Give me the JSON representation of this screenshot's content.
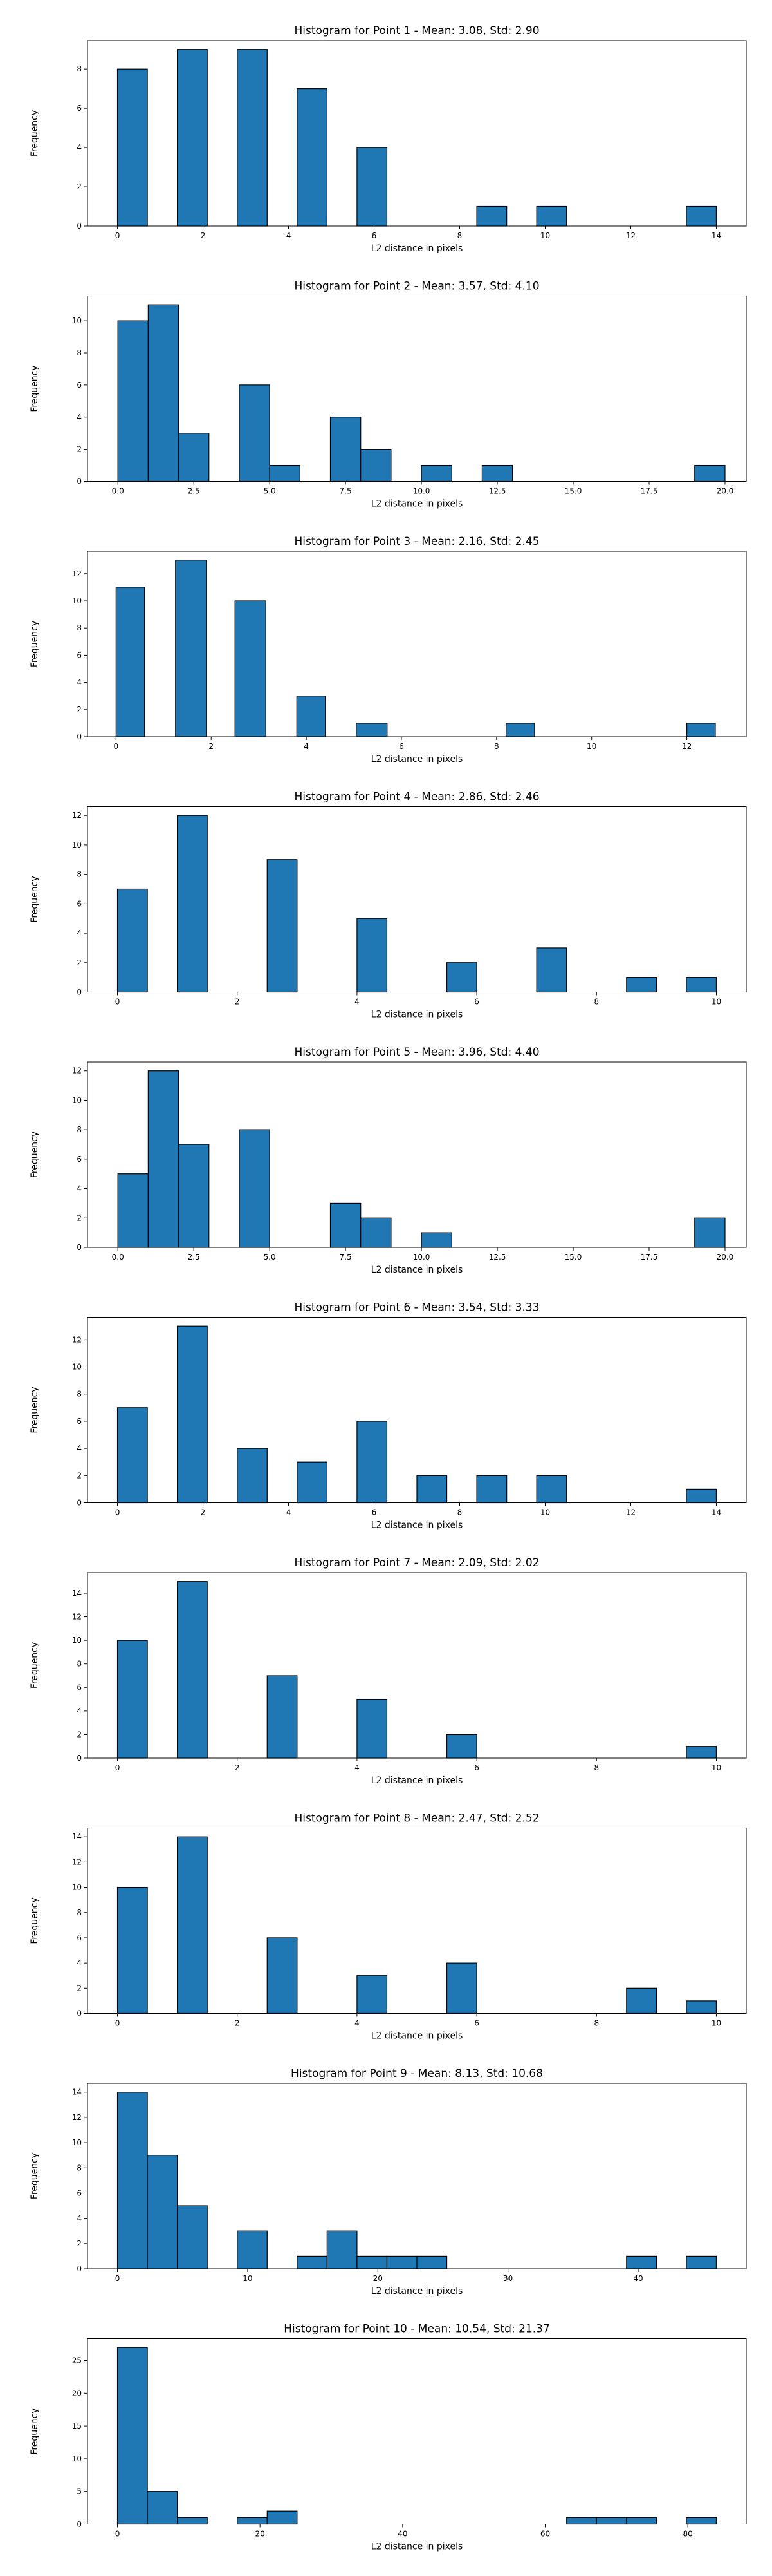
{
  "chart_data": [
    {
      "type": "bar",
      "title": "Histogram for Point 1 - Mean: 3.08, Std: 2.90",
      "xlabel": "L2 distance in pixels",
      "ylabel": "Frequency",
      "xlim": [
        -0.7,
        14.7
      ],
      "ylim": [
        0,
        9.45
      ],
      "xticks": [
        0,
        2,
        4,
        6,
        8,
        10,
        12,
        14
      ],
      "xtick_labels": [
        "0",
        "2",
        "4",
        "6",
        "8",
        "10",
        "12",
        "14"
      ],
      "yticks": [
        0,
        2,
        4,
        6,
        8
      ],
      "ytick_labels": [
        "0",
        "2",
        "4",
        "6",
        "8"
      ],
      "bins": [
        [
          0,
          0.7,
          8
        ],
        [
          1.4,
          2.1,
          9
        ],
        [
          2.8,
          3.5,
          9
        ],
        [
          4.2,
          4.9,
          7
        ],
        [
          5.6,
          6.3,
          4
        ],
        [
          8.4,
          9.1,
          1
        ],
        [
          9.8,
          10.5,
          1
        ],
        [
          13.3,
          14.0,
          1
        ]
      ]
    },
    {
      "type": "bar",
      "title": "Histogram for Point 2 - Mean: 3.57, Std: 4.10",
      "xlabel": "L2 distance in pixels",
      "ylabel": "Frequency",
      "xlim": [
        -1.0,
        20.7
      ],
      "ylim": [
        0,
        11.55
      ],
      "xticks": [
        0,
        2.5,
        5,
        7.5,
        10,
        12.5,
        15,
        17.5,
        20
      ],
      "xtick_labels": [
        "0.0",
        "2.5",
        "5.0",
        "7.5",
        "10.0",
        "12.5",
        "15.0",
        "17.5",
        "20.0"
      ],
      "yticks": [
        0,
        2,
        4,
        6,
        8,
        10
      ],
      "ytick_labels": [
        "0",
        "2",
        "4",
        "6",
        "8",
        "10"
      ],
      "bins": [
        [
          0,
          1,
          10
        ],
        [
          1,
          2,
          11
        ],
        [
          2,
          3,
          3
        ],
        [
          4,
          5,
          6
        ],
        [
          5,
          6,
          1
        ],
        [
          7,
          8,
          4
        ],
        [
          8,
          9,
          2
        ],
        [
          10,
          11,
          1
        ],
        [
          12,
          13,
          1
        ],
        [
          19,
          20,
          1
        ]
      ]
    },
    {
      "type": "bar",
      "title": "Histogram for Point 3 - Mean: 2.16, Std: 2.45",
      "xlabel": "L2 distance in pixels",
      "ylabel": "Frequency",
      "xlim": [
        -0.6,
        13.25
      ],
      "ylim": [
        0,
        13.65
      ],
      "xticks": [
        0,
        2,
        4,
        6,
        8,
        10,
        12
      ],
      "xtick_labels": [
        "0",
        "2",
        "4",
        "6",
        "8",
        "10",
        "12"
      ],
      "yticks": [
        0,
        2,
        4,
        6,
        8,
        10,
        12
      ],
      "ytick_labels": [
        "0",
        "2",
        "4",
        "6",
        "8",
        "10",
        "12"
      ],
      "bins": [
        [
          0,
          0.6,
          11
        ],
        [
          1.25,
          1.9,
          13
        ],
        [
          2.5,
          3.15,
          10
        ],
        [
          3.8,
          4.4,
          3
        ],
        [
          5.05,
          5.7,
          1
        ],
        [
          8.2,
          8.8,
          1
        ],
        [
          12.0,
          12.6,
          1
        ]
      ]
    },
    {
      "type": "bar",
      "title": "Histogram for Point 4 - Mean: 2.86, Std: 2.46",
      "xlabel": "L2 distance in pixels",
      "ylabel": "Frequency",
      "xlim": [
        -0.5,
        10.5
      ],
      "ylim": [
        0,
        12.6
      ],
      "xticks": [
        0,
        2,
        4,
        6,
        8,
        10
      ],
      "xtick_labels": [
        "0",
        "2",
        "4",
        "6",
        "8",
        "10"
      ],
      "yticks": [
        0,
        2,
        4,
        6,
        8,
        10,
        12
      ],
      "ytick_labels": [
        "0",
        "2",
        "4",
        "6",
        "8",
        "10",
        "12"
      ],
      "bins": [
        [
          0,
          0.5,
          7
        ],
        [
          1,
          1.5,
          12
        ],
        [
          2.5,
          3,
          9
        ],
        [
          4,
          4.5,
          5
        ],
        [
          5.5,
          6,
          2
        ],
        [
          7,
          7.5,
          3
        ],
        [
          8.5,
          9,
          1
        ],
        [
          9.5,
          10,
          1
        ]
      ]
    },
    {
      "type": "bar",
      "title": "Histogram for Point 5 - Mean: 3.96, Std: 4.40",
      "xlabel": "L2 distance in pixels",
      "ylabel": "Frequency",
      "xlim": [
        -1.0,
        20.7
      ],
      "ylim": [
        0,
        12.6
      ],
      "xticks": [
        0,
        2.5,
        5,
        7.5,
        10,
        12.5,
        15,
        17.5,
        20
      ],
      "xtick_labels": [
        "0.0",
        "2.5",
        "5.0",
        "7.5",
        "10.0",
        "12.5",
        "15.0",
        "17.5",
        "20.0"
      ],
      "yticks": [
        0,
        2,
        4,
        6,
        8,
        10,
        12
      ],
      "ytick_labels": [
        "0",
        "2",
        "4",
        "6",
        "8",
        "10",
        "12"
      ],
      "bins": [
        [
          0,
          1,
          5
        ],
        [
          1,
          2,
          12
        ],
        [
          2,
          3,
          7
        ],
        [
          4,
          5,
          8
        ],
        [
          7,
          8,
          3
        ],
        [
          8,
          9,
          2
        ],
        [
          10,
          11,
          1
        ],
        [
          19,
          20,
          2
        ]
      ]
    },
    {
      "type": "bar",
      "title": "Histogram for Point 6 - Mean: 3.54, Std: 3.33",
      "xlabel": "L2 distance in pixels",
      "ylabel": "Frequency",
      "xlim": [
        -0.7,
        14.7
      ],
      "ylim": [
        0,
        13.65
      ],
      "xticks": [
        0,
        2,
        4,
        6,
        8,
        10,
        12,
        14
      ],
      "xtick_labels": [
        "0",
        "2",
        "4",
        "6",
        "8",
        "10",
        "12",
        "14"
      ],
      "yticks": [
        0,
        2,
        4,
        6,
        8,
        10,
        12
      ],
      "ytick_labels": [
        "0",
        "2",
        "4",
        "6",
        "8",
        "10",
        "12"
      ],
      "bins": [
        [
          0,
          0.7,
          7
        ],
        [
          1.4,
          2.1,
          13
        ],
        [
          2.8,
          3.5,
          4
        ],
        [
          4.2,
          4.9,
          3
        ],
        [
          5.6,
          6.3,
          6
        ],
        [
          7.0,
          7.7,
          2
        ],
        [
          8.4,
          9.1,
          2
        ],
        [
          9.8,
          10.5,
          2
        ],
        [
          13.3,
          14.0,
          1
        ]
      ]
    },
    {
      "type": "bar",
      "title": "Histogram for Point 7 - Mean: 2.09, Std: 2.02",
      "xlabel": "L2 distance in pixels",
      "ylabel": "Frequency",
      "xlim": [
        -0.5,
        10.5
      ],
      "ylim": [
        0,
        15.75
      ],
      "xticks": [
        0,
        2,
        4,
        6,
        8,
        10
      ],
      "xtick_labels": [
        "0",
        "2",
        "4",
        "6",
        "8",
        "10"
      ],
      "yticks": [
        0,
        2,
        4,
        6,
        8,
        10,
        12,
        14
      ],
      "ytick_labels": [
        "0",
        "2",
        "4",
        "6",
        "8",
        "10",
        "12",
        "14"
      ],
      "bins": [
        [
          0,
          0.5,
          10
        ],
        [
          1,
          1.5,
          15
        ],
        [
          2.5,
          3,
          7
        ],
        [
          4,
          4.5,
          5
        ],
        [
          5.5,
          6,
          2
        ],
        [
          9.5,
          10,
          1
        ]
      ]
    },
    {
      "type": "bar",
      "title": "Histogram for Point 8 - Mean: 2.47, Std: 2.52",
      "xlabel": "L2 distance in pixels",
      "ylabel": "Frequency",
      "xlim": [
        -0.5,
        10.5
      ],
      "ylim": [
        0,
        14.7
      ],
      "xticks": [
        0,
        2,
        4,
        6,
        8,
        10
      ],
      "xtick_labels": [
        "0",
        "2",
        "4",
        "6",
        "8",
        "10"
      ],
      "yticks": [
        0,
        2,
        4,
        6,
        8,
        10,
        12,
        14
      ],
      "ytick_labels": [
        "0",
        "2",
        "4",
        "6",
        "8",
        "10",
        "12",
        "14"
      ],
      "bins": [
        [
          0,
          0.5,
          10
        ],
        [
          1,
          1.5,
          14
        ],
        [
          2.5,
          3,
          6
        ],
        [
          4,
          4.5,
          3
        ],
        [
          5.5,
          6,
          4
        ],
        [
          8.5,
          9,
          2
        ],
        [
          9.5,
          10,
          1
        ]
      ]
    },
    {
      "type": "bar",
      "title": "Histogram for Point 9 - Mean: 8.13, Std: 10.68",
      "xlabel": "L2 distance in pixels",
      "ylabel": "Frequency",
      "xlim": [
        -2.3,
        48.3
      ],
      "ylim": [
        0,
        14.7
      ],
      "xticks": [
        0,
        10,
        20,
        30,
        40
      ],
      "xtick_labels": [
        "0",
        "10",
        "20",
        "30",
        "40"
      ],
      "yticks": [
        0,
        2,
        4,
        6,
        8,
        10,
        12,
        14
      ],
      "ytick_labels": [
        "0",
        "2",
        "4",
        "6",
        "8",
        "10",
        "12",
        "14"
      ],
      "bins": [
        [
          0,
          2.3,
          14
        ],
        [
          2.3,
          4.6,
          9
        ],
        [
          4.6,
          6.9,
          5
        ],
        [
          9.2,
          11.5,
          3
        ],
        [
          13.8,
          16.1,
          1
        ],
        [
          16.1,
          18.4,
          3
        ],
        [
          18.4,
          20.7,
          1
        ],
        [
          20.7,
          23,
          1
        ],
        [
          23,
          25.3,
          1
        ],
        [
          39.1,
          41.4,
          1
        ],
        [
          43.7,
          46,
          1
        ]
      ]
    },
    {
      "type": "bar",
      "title": "Histogram for Point 10 - Mean: 10.54, Std: 21.37",
      "xlabel": "L2 distance in pixels",
      "ylabel": "Frequency",
      "xlim": [
        -4.2,
        88.2
      ],
      "ylim": [
        0,
        28.35
      ],
      "xticks": [
        0,
        20,
        40,
        60,
        80
      ],
      "xtick_labels": [
        "0",
        "20",
        "40",
        "60",
        "80"
      ],
      "yticks": [
        0,
        5,
        10,
        15,
        20,
        25
      ],
      "ytick_labels": [
        "0",
        "5",
        "10",
        "15",
        "20",
        "25"
      ],
      "bins": [
        [
          0,
          4.2,
          27
        ],
        [
          4.2,
          8.4,
          5
        ],
        [
          8.4,
          12.6,
          1
        ],
        [
          16.8,
          21,
          1
        ],
        [
          21,
          25.2,
          2
        ],
        [
          63,
          67.2,
          1
        ],
        [
          67.2,
          71.4,
          1
        ],
        [
          71.4,
          75.6,
          1
        ],
        [
          79.8,
          84,
          1
        ]
      ]
    }
  ]
}
